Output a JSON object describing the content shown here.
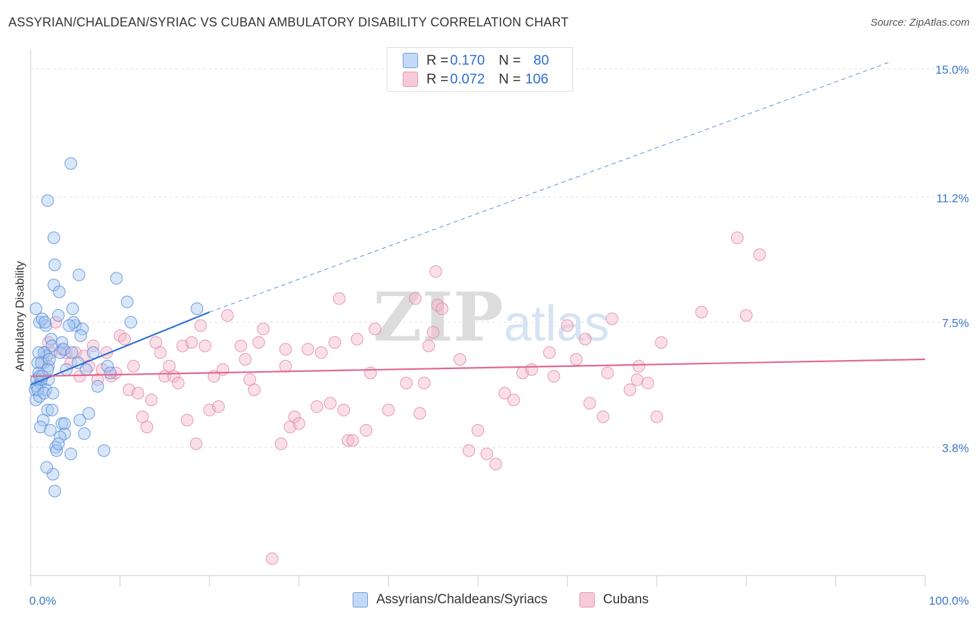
{
  "title": "ASSYRIAN/CHALDEAN/SYRIAC VS CUBAN AMBULATORY DISABILITY CORRELATION CHART",
  "source": "Source: ZipAtlas.com",
  "watermark": {
    "zip": "ZIP",
    "atlas": "atlas"
  },
  "legend": {
    "rows": [
      {
        "r_label": "R =",
        "r_value": "0.170",
        "n_label": "N =",
        "n_value": "80"
      },
      {
        "r_label": "R =",
        "r_value": "0.072",
        "n_label": "N =",
        "n_value": "106"
      }
    ]
  },
  "colors": {
    "blue_fill": "#a9c8f2",
    "blue_stroke": "#4a86d8",
    "blue_line": "#2e6fd1",
    "pink_fill": "#f5b8cc",
    "pink_stroke": "#e07fa0",
    "pink_line": "#e0668f",
    "tick_label": "#3a78c9"
  },
  "chart_data": {
    "type": "scatter",
    "title": "ASSYRIAN/CHALDEAN/SYRIAC VS CUBAN AMBULATORY DISABILITY CORRELATION CHART",
    "xlabel": "",
    "ylabel": "Ambulatory Disability",
    "xlim": [
      0,
      100
    ],
    "ylim": [
      0,
      15.6
    ],
    "x_tick_labels": [
      "0.0%",
      "100.0%"
    ],
    "y_ticks": [
      3.8,
      7.5,
      11.2,
      15.0
    ],
    "y_tick_labels": [
      "3.8%",
      "7.5%",
      "11.2%",
      "15.0%"
    ],
    "grid": true,
    "legend_position": "top-center",
    "series": [
      {
        "name": "Assyrians/Chaldeans/Syriacs",
        "color": "#a9c8f2",
        "trend": {
          "x0": 0,
          "y0": 5.65,
          "x1": 20,
          "y1": 7.8,
          "extends_dashed_to": [
            96,
            15.2
          ]
        },
        "points": [
          [
            0.5,
            5.5
          ],
          [
            0.6,
            5.2
          ],
          [
            0.7,
            5.6
          ],
          [
            0.8,
            6.3
          ],
          [
            0.9,
            6.0
          ],
          [
            1.0,
            5.3
          ],
          [
            1.1,
            5.7
          ],
          [
            1.2,
            5.8
          ],
          [
            0.6,
            7.9
          ],
          [
            1.0,
            7.5
          ],
          [
            1.5,
            6.6
          ],
          [
            1.7,
            7.4
          ],
          [
            1.8,
            6.5
          ],
          [
            2.0,
            6.2
          ],
          [
            1.3,
            7.6
          ],
          [
            1.6,
            7.5
          ],
          [
            2.3,
            7.0
          ],
          [
            2.4,
            6.8
          ],
          [
            2.0,
            5.8
          ],
          [
            1.7,
            5.5
          ],
          [
            1.9,
            4.9
          ],
          [
            1.4,
            4.6
          ],
          [
            1.1,
            4.4
          ],
          [
            2.2,
            4.3
          ],
          [
            2.8,
            3.8
          ],
          [
            2.9,
            3.7
          ],
          [
            2.5,
            3.0
          ],
          [
            2.7,
            2.5
          ],
          [
            1.8,
            3.2
          ],
          [
            3.5,
            4.5
          ],
          [
            3.8,
            4.2
          ],
          [
            3.3,
            4.1
          ],
          [
            4.5,
            3.6
          ],
          [
            5.5,
            4.6
          ],
          [
            6.0,
            4.2
          ],
          [
            6.5,
            4.8
          ],
          [
            5.3,
            6.3
          ],
          [
            6.2,
            6.1
          ],
          [
            7.0,
            6.6
          ],
          [
            7.5,
            5.6
          ],
          [
            5.0,
            7.4
          ],
          [
            5.8,
            7.3
          ],
          [
            5.6,
            7.1
          ],
          [
            4.8,
            7.5
          ],
          [
            4.3,
            7.4
          ],
          [
            3.5,
            6.9
          ],
          [
            3.3,
            6.6
          ],
          [
            3.7,
            6.7
          ],
          [
            2.6,
            8.6
          ],
          [
            2.7,
            9.2
          ],
          [
            2.6,
            10.0
          ],
          [
            3.2,
            8.4
          ],
          [
            1.9,
            11.1
          ],
          [
            4.5,
            12.2
          ],
          [
            5.4,
            8.9
          ],
          [
            4.7,
            7.9
          ],
          [
            8.6,
            6.2
          ],
          [
            9.6,
            8.8
          ],
          [
            11.2,
            7.5
          ],
          [
            10.8,
            8.1
          ],
          [
            8.9,
            6.0
          ],
          [
            8.2,
            3.7
          ],
          [
            18.6,
            7.9
          ],
          [
            3.1,
            7.7
          ],
          [
            1.5,
            6.6
          ],
          [
            0.9,
            6.6
          ],
          [
            1.2,
            6.3
          ],
          [
            0.7,
            5.8
          ],
          [
            0.8,
            5.5
          ],
          [
            1.5,
            5.4
          ],
          [
            2.4,
            4.9
          ],
          [
            3.1,
            3.9
          ],
          [
            4.0,
            6.1
          ],
          [
            4.6,
            6.6
          ],
          [
            2.1,
            6.4
          ],
          [
            1.9,
            6.1
          ],
          [
            1.0,
            5.9
          ],
          [
            2.5,
            5.4
          ],
          [
            3.8,
            4.5
          ],
          [
            1.3,
            5.9
          ]
        ]
      },
      {
        "name": "Cubans",
        "color": "#f5b8cc",
        "trend": {
          "x0": 0,
          "y0": 5.9,
          "x1": 100,
          "y1": 6.4
        },
        "points": [
          [
            1.5,
            6.3
          ],
          [
            2.0,
            6.9
          ],
          [
            2.3,
            6.6
          ],
          [
            2.8,
            7.5
          ],
          [
            3.5,
            6.7
          ],
          [
            4.0,
            6.6
          ],
          [
            4.5,
            6.3
          ],
          [
            5.0,
            6.6
          ],
          [
            5.5,
            5.9
          ],
          [
            6.0,
            6.5
          ],
          [
            6.5,
            6.2
          ],
          [
            7.0,
            6.8
          ],
          [
            7.5,
            5.8
          ],
          [
            8.0,
            6.1
          ],
          [
            8.5,
            6.6
          ],
          [
            9.0,
            5.9
          ],
          [
            9.5,
            6.0
          ],
          [
            10.0,
            7.1
          ],
          [
            10.5,
            7.0
          ],
          [
            11.0,
            5.5
          ],
          [
            11.5,
            6.2
          ],
          [
            12.0,
            5.4
          ],
          [
            12.5,
            4.7
          ],
          [
            13.0,
            4.4
          ],
          [
            13.5,
            5.2
          ],
          [
            14.0,
            6.9
          ],
          [
            14.5,
            6.6
          ],
          [
            15.0,
            5.9
          ],
          [
            15.5,
            6.2
          ],
          [
            16.0,
            5.9
          ],
          [
            16.5,
            5.7
          ],
          [
            17.0,
            6.8
          ],
          [
            17.5,
            4.6
          ],
          [
            18.0,
            6.9
          ],
          [
            18.5,
            3.9
          ],
          [
            19.0,
            7.4
          ],
          [
            19.5,
            6.8
          ],
          [
            20.0,
            4.9
          ],
          [
            20.5,
            5.9
          ],
          [
            21.0,
            5.0
          ],
          [
            21.5,
            6.1
          ],
          [
            22.0,
            7.7
          ],
          [
            23.5,
            6.8
          ],
          [
            24.0,
            6.4
          ],
          [
            24.5,
            5.8
          ],
          [
            25.0,
            5.5
          ],
          [
            25.5,
            6.9
          ],
          [
            26.0,
            7.3
          ],
          [
            27.0,
            0.5
          ],
          [
            28.0,
            3.9
          ],
          [
            28.5,
            6.7
          ],
          [
            29.0,
            4.4
          ],
          [
            29.5,
            4.7
          ],
          [
            30.0,
            4.5
          ],
          [
            31.0,
            6.7
          ],
          [
            32.0,
            5.0
          ],
          [
            32.5,
            6.6
          ],
          [
            33.5,
            5.1
          ],
          [
            34.0,
            6.9
          ],
          [
            34.5,
            8.2
          ],
          [
            35.0,
            4.9
          ],
          [
            35.5,
            4.0
          ],
          [
            36.0,
            4.0
          ],
          [
            36.5,
            7.0
          ],
          [
            37.5,
            4.3
          ],
          [
            38.0,
            6.0
          ],
          [
            40.0,
            4.9
          ],
          [
            42.0,
            5.7
          ],
          [
            43.0,
            8.2
          ],
          [
            43.5,
            4.8
          ],
          [
            44.0,
            5.7
          ],
          [
            44.5,
            6.8
          ],
          [
            45.0,
            7.2
          ],
          [
            45.5,
            8.0
          ],
          [
            46.0,
            7.9
          ],
          [
            45.3,
            9.0
          ],
          [
            48.0,
            6.4
          ],
          [
            49.0,
            3.7
          ],
          [
            50.0,
            4.3
          ],
          [
            51.0,
            3.6
          ],
          [
            52.0,
            3.3
          ],
          [
            53.0,
            5.4
          ],
          [
            54.0,
            5.2
          ],
          [
            55.0,
            6.0
          ],
          [
            56.0,
            6.1
          ],
          [
            58.0,
            6.6
          ],
          [
            60.0,
            7.4
          ],
          [
            61.0,
            6.4
          ],
          [
            62.0,
            7.0
          ],
          [
            62.5,
            5.1
          ],
          [
            64.0,
            4.7
          ],
          [
            64.5,
            6.0
          ],
          [
            65.0,
            7.6
          ],
          [
            67.0,
            5.5
          ],
          [
            68.0,
            6.2
          ],
          [
            69.0,
            5.7
          ],
          [
            70.0,
            4.7
          ],
          [
            70.5,
            6.9
          ],
          [
            75.0,
            7.8
          ],
          [
            79.0,
            10.0
          ],
          [
            80.0,
            7.7
          ],
          [
            81.5,
            9.5
          ],
          [
            58.5,
            5.9
          ],
          [
            67.8,
            5.8
          ],
          [
            28.5,
            6.2
          ],
          [
            38.5,
            7.3
          ]
        ]
      }
    ]
  },
  "bottom_legend": {
    "items": [
      {
        "label": "Assyrians/Chaldeans/Syriacs"
      },
      {
        "label": "Cubans"
      }
    ]
  }
}
